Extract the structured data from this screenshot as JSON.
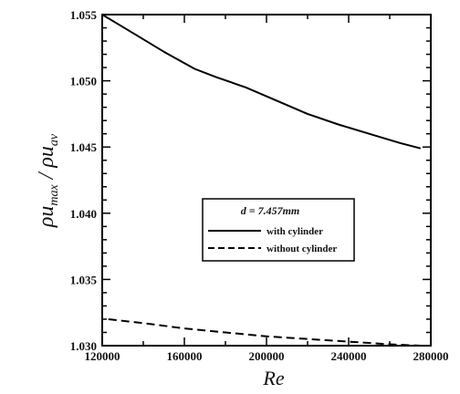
{
  "chart_data": {
    "type": "line",
    "title": "",
    "xlabel": "Re",
    "ylabel": "ρu_max / ρu_av",
    "xlim": [
      120000,
      280000
    ],
    "ylim": [
      1.03,
      1.055
    ],
    "x_ticks": [
      "120000",
      "160000",
      "200000",
      "240000",
      "280000"
    ],
    "y_ticks": [
      "1.030",
      "1.035",
      "1.040",
      "1.045",
      "1.050",
      "1.055"
    ],
    "grid": false,
    "legend_title": "d = 7.457mm",
    "legend_position": "center-right",
    "series": [
      {
        "name": "with cylinder",
        "style": "solid",
        "x": [
          120000,
          135000,
          150000,
          165000,
          175000,
          190000,
          205000,
          220000,
          235000,
          250000,
          265000,
          275000
        ],
        "y": [
          1.055,
          1.0536,
          1.0522,
          1.0509,
          1.0503,
          1.0495,
          1.0485,
          1.0475,
          1.0467,
          1.046,
          1.0453,
          1.0449
        ]
      },
      {
        "name": "without cylinder",
        "style": "dashed",
        "x": [
          123000,
          140000,
          160000,
          180000,
          200000,
          220000,
          240000,
          260000,
          275000
        ],
        "y": [
          1.032,
          1.0317,
          1.0313,
          1.031,
          1.0307,
          1.0305,
          1.0303,
          1.0301,
          1.03
        ]
      }
    ],
    "colors": {
      "line": "#000000",
      "axis": "#000000"
    }
  }
}
